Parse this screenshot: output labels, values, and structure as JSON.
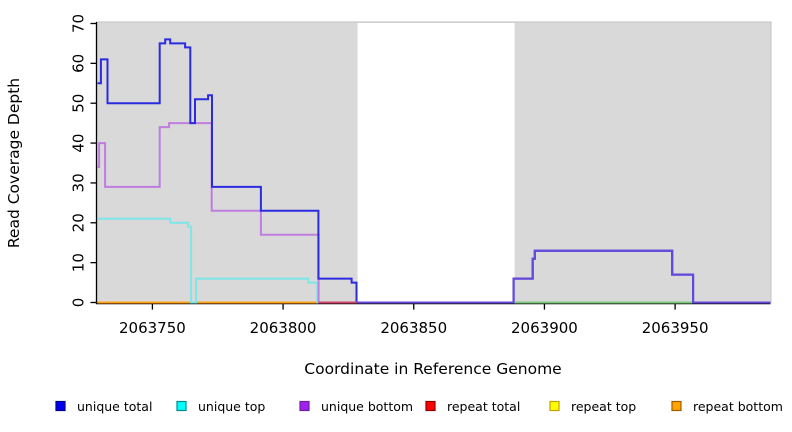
{
  "chart_data": {
    "type": "step-line",
    "title": "",
    "xlabel": "Coordinate in Reference Genome",
    "ylabel": "Read Coverage Depth",
    "xlim": [
      2063728.8,
      2063986.5
    ],
    "ylim": [
      0,
      70.4
    ],
    "x_ticks": [
      2063750,
      2063800,
      2063850,
      2063900,
      2063950
    ],
    "y_ticks": [
      0,
      10,
      20,
      30,
      40,
      50,
      60,
      70
    ],
    "grid": "off",
    "panel_bg": "#d9d9d9",
    "panel_border": "#c2c2c2",
    "masked_region": {
      "from": 2063828.5,
      "to": 2063888.6,
      "color": "#ffffff"
    },
    "series": [
      {
        "name": "unique total",
        "color": "#2b2bdf",
        "points": [
          [
            2063729,
            55
          ],
          [
            2063730.3,
            61
          ],
          [
            2063732.8,
            50
          ],
          [
            2063752.8,
            65
          ],
          [
            2063754.9,
            66
          ],
          [
            2063756.8,
            65
          ],
          [
            2063762.5,
            64
          ],
          [
            2063764.5,
            45
          ],
          [
            2063766.3,
            51
          ],
          [
            2063771.3,
            52
          ],
          [
            2063772.8,
            29
          ],
          [
            2063791.5,
            23
          ],
          [
            2063813.5,
            6
          ],
          [
            2063826.2,
            5
          ],
          [
            2063828.1,
            0
          ],
          [
            2063888.2,
            6
          ],
          [
            2063895.5,
            11
          ],
          [
            2063896.3,
            13
          ],
          [
            2063948.9,
            7
          ],
          [
            2063956.9,
            0
          ]
        ],
        "end": 2063986.5
      },
      {
        "name": "unique top",
        "color": "#7ce6e9",
        "points": [
          [
            2063729,
            21
          ],
          [
            2063756.8,
            20
          ],
          [
            2063763.7,
            19
          ],
          [
            2063764.8,
            0
          ],
          [
            2063766.7,
            6
          ],
          [
            2063809.6,
            5
          ],
          [
            2063813.1,
            0
          ]
        ],
        "end": 2063986.5
      },
      {
        "name": "unique bottom",
        "color": "#bf7de0",
        "points": [
          [
            2063729,
            34
          ],
          [
            2063729.6,
            40
          ],
          [
            2063731.9,
            29
          ],
          [
            2063752.8,
            44
          ],
          [
            2063756.4,
            45
          ],
          [
            2063772.7,
            23
          ],
          [
            2063791.5,
            17
          ],
          [
            2063813.6,
            0
          ],
          [
            2063888.2,
            6
          ],
          [
            2063895.5,
            11
          ],
          [
            2063896.3,
            13
          ],
          [
            2063948.9,
            7
          ],
          [
            2063956.9,
            0
          ]
        ],
        "end": 2063986.5
      },
      {
        "name": "repeat total",
        "color": "#ff0000",
        "points": [
          [
            2063729,
            0
          ]
        ],
        "end": 2063986.5
      },
      {
        "name": "repeat top",
        "color": "#ffff00",
        "points": [
          [
            2063729,
            0
          ]
        ],
        "end": 2063986.5
      },
      {
        "name": "repeat bottom",
        "color": "#ff9e19",
        "points": [
          [
            2063729,
            0
          ]
        ],
        "end": 2063986.5
      }
    ],
    "draw_order": [
      "repeat total",
      "repeat top",
      "repeat bottom",
      "unique top",
      "unique bottom",
      "unique total"
    ],
    "overlap_blends": [
      {
        "name": "zero-line-blend-crimson",
        "color": "#cc4468",
        "points": [
          [
            2063813.6,
            0
          ]
        ],
        "end": 2063828.1
      },
      {
        "name": "zero-line-blend-green",
        "color": "#7cc87c",
        "points": [
          [
            2063888.2,
            0
          ]
        ],
        "end": 2063956.9
      },
      {
        "name": "unique-total-bottom-overlap-slate",
        "color": "#6348da",
        "points": [
          [
            2063828.1,
            0
          ],
          [
            2063888.2,
            6
          ],
          [
            2063895.5,
            11
          ],
          [
            2063896.3,
            13
          ],
          [
            2063948.9,
            7
          ],
          [
            2063956.9,
            0
          ]
        ],
        "end": 2063986.5
      }
    ],
    "legend": [
      {
        "label": "unique total",
        "fill": "#0000f0",
        "border": "#00008b"
      },
      {
        "label": "unique top",
        "fill": "#00ffff",
        "border": "#008b8b"
      },
      {
        "label": "unique bottom",
        "fill": "#a020f0",
        "border": "#71209f"
      },
      {
        "label": "repeat total",
        "fill": "#ff0000",
        "border": "#8b0000"
      },
      {
        "label": "repeat top",
        "fill": "#ffff00",
        "border": "#c8a000"
      },
      {
        "label": "repeat bottom",
        "fill": "#ffa500",
        "border": "#a05a00"
      }
    ]
  }
}
